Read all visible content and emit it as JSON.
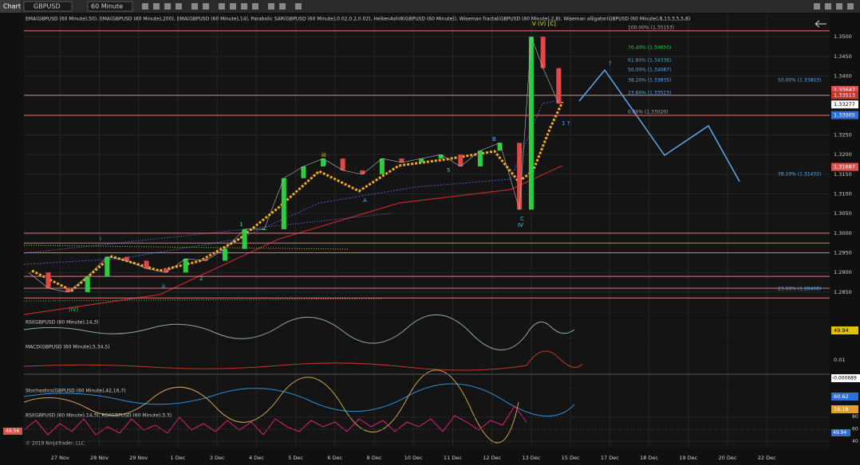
{
  "toolbar": {
    "tab": "Chart",
    "symbol": "GBPUSD",
    "interval": "60 Minute"
  },
  "main": {
    "header": "EMA(GBPUSD (60 Minute),50), EMA(GBPUSD (60 Minute),200), EMA(GBPUSD (60 Minute),14), Parabolic SAR(GBPUSD (60 Minute),0.02,0.2,0.02), HeikenAshi8(GBPUSD (60 Minute)), Wiseman fractal(GBPUSD (60 Minute),2,8), Wiseman alligator(GBPUSD (60 Minute),8,13,3,5,5,8)",
    "ylim": [
      1.2787,
      1.3557
    ],
    "xlim": [
      -0.92,
      19.6
    ],
    "yticks": [
      {
        "value": 1.35,
        "label": "1.3500"
      },
      {
        "value": 1.345,
        "label": "1.3450"
      },
      {
        "value": 1.34,
        "label": "1.3400"
      },
      {
        "value": 1.335,
        "label": "1.3350"
      },
      {
        "value": 1.33,
        "label": "1.3300"
      },
      {
        "value": 1.325,
        "label": "1.3250"
      },
      {
        "value": 1.32,
        "label": "1.3200"
      },
      {
        "value": 1.315,
        "label": "1.3150"
      },
      {
        "value": 1.31,
        "label": "1.3100"
      },
      {
        "value": 1.305,
        "label": "1.3050"
      },
      {
        "value": 1.3,
        "label": "1.3000"
      },
      {
        "value": 1.295,
        "label": "1.2950"
      },
      {
        "value": 1.29,
        "label": "1.2900"
      },
      {
        "value": 1.285,
        "label": "1.2850"
      }
    ],
    "categories": [
      "27 Nov",
      "28 Nov",
      "29 Nov",
      "1 Dec",
      "3 Dec",
      "4 Dec",
      "5 Dec",
      "6 Dec",
      "8 Dec",
      "10 Dec",
      "11 Dec",
      "12 Dec",
      "13 Dec",
      "15 Dec",
      "17 Dec",
      "18 Dec",
      "19 Dec",
      "20 Dec",
      "22 Dec"
    ],
    "price": {
      "x": [
        -0.8,
        -0.3,
        0.2,
        0.7,
        1.2,
        1.7,
        2.2,
        2.7,
        3.2,
        3.7,
        4.2,
        4.7,
        5.2,
        5.7,
        6.2,
        6.7,
        7.2,
        7.7,
        8.2,
        8.7,
        9.2,
        9.7,
        10.2,
        10.7,
        11.2,
        11.7,
        12.0,
        12.3,
        12.7
      ],
      "values": [
        1.29,
        1.286,
        1.285,
        1.289,
        1.294,
        1.293,
        1.291,
        1.29,
        1.2935,
        1.293,
        1.296,
        1.301,
        1.301,
        1.314,
        1.317,
        1.319,
        1.316,
        1.315,
        1.319,
        1.318,
        1.319,
        1.32,
        1.317,
        1.321,
        1.323,
        1.306,
        1.35,
        1.342,
        1.333
      ]
    },
    "levels": [
      1.3515,
      1.3351,
      1.33,
      1.3,
      1.2975,
      1.295,
      1.289,
      1.286,
      1.2835
    ],
    "badges": [
      {
        "value": 1.33647,
        "color": "#d9534f"
      },
      {
        "value": 1.33513,
        "color": "#c0392b"
      },
      {
        "value": 1.33277,
        "color": "#ffffff"
      },
      {
        "value": 1.33005,
        "color": "#2e6fd8"
      },
      {
        "value": 1.31687,
        "color": "#d9534f"
      }
    ],
    "fib": [
      "100.00% (1.35153)",
      "76.40% (1.34650)",
      "61.80% (1.34338)",
      "50.00% (1.34087)",
      "38.20% (1.33835)",
      "23.60% (1.33523)",
      "0.00% (1.33020)"
    ],
    "fib_right": [
      "50.00% (1.33803)",
      "38.20% (1.31432)",
      "23.60% (1.28408)"
    ],
    "waves": [
      "i",
      "ii",
      "iii",
      "(IV)",
      "IV",
      "V (V) [C]",
      "1",
      "2",
      "3",
      "A",
      "B",
      "C",
      "5",
      "?",
      "1 ?"
    ]
  },
  "rsi": {
    "label": "RSI(GBPUSD (60 Minute),14,3)",
    "value": 49.94
  },
  "macd": {
    "label": "MACD(GBPUSD (60 Minute),5,34,5)",
    "tick": 0.01,
    "value": -0.000689
  },
  "stoch": {
    "label": "Stochastics(GBPUSD (60 Minute),42,16,7)",
    "values": [
      60.62,
      16.18
    ]
  },
  "rsi2": {
    "label": "RSI(GBPUSD (60 Minute),14,3), RSI(GBPUSD (60 Minute),3,3)",
    "yticks": [
      80,
      60,
      40
    ],
    "value": 49.94,
    "left_value": 49.56,
    "copyright": "© 2019 NinjaTrader, LLC"
  }
}
